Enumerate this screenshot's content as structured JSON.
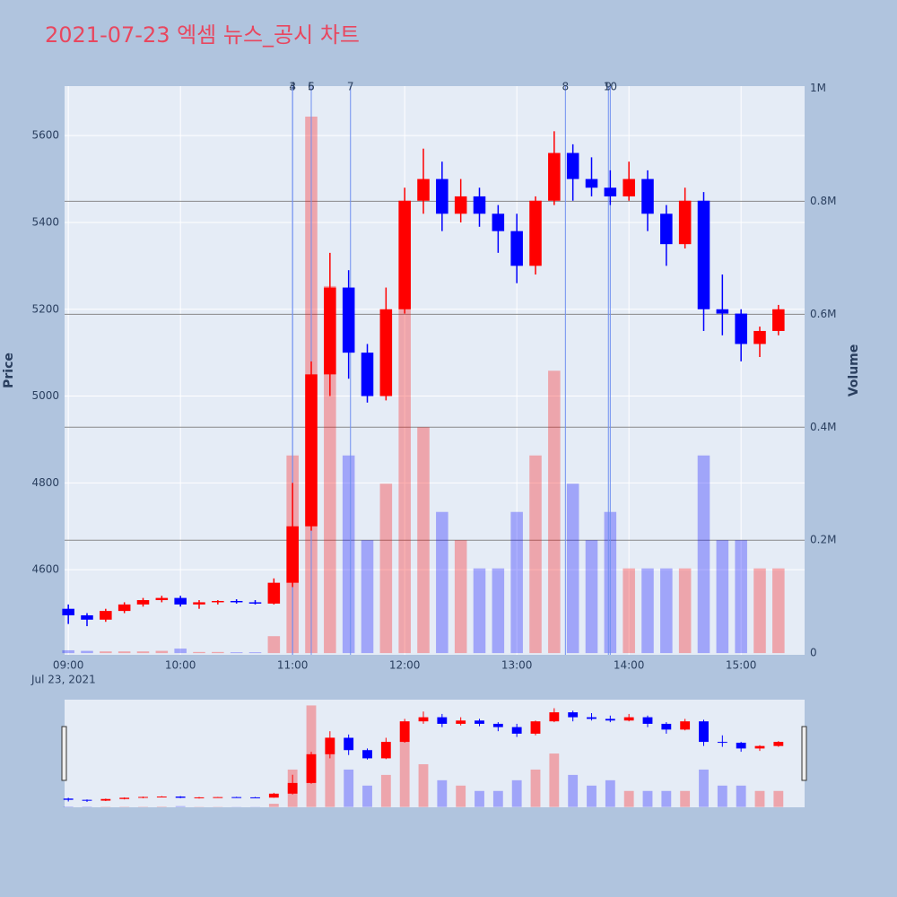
{
  "chart_data": {
    "type": "candlestick",
    "title": "2021-07-23 엑셈 뉴스_공시 차트",
    "y_label": "Price",
    "y2_label": "Volume",
    "x": [
      "2021-07-23 09:00",
      "2021-07-23 09:10",
      "2021-07-23 09:20",
      "2021-07-23 09:30",
      "2021-07-23 09:40",
      "2021-07-23 09:50",
      "2021-07-23 10:00",
      "2021-07-23 10:10",
      "2021-07-23 10:20",
      "2021-07-23 10:30",
      "2021-07-23 10:40",
      "2021-07-23 10:50",
      "2021-07-23 11:00",
      "2021-07-23 11:10",
      "2021-07-23 11:20",
      "2021-07-23 11:30",
      "2021-07-23 11:40",
      "2021-07-23 11:50",
      "2021-07-23 12:00",
      "2021-07-23 12:10",
      "2021-07-23 12:20",
      "2021-07-23 12:30",
      "2021-07-23 12:40",
      "2021-07-23 12:50",
      "2021-07-23 13:00",
      "2021-07-23 13:10",
      "2021-07-23 13:20",
      "2021-07-23 13:30",
      "2021-07-23 13:40",
      "2021-07-23 13:50",
      "2021-07-23 14:00",
      "2021-07-23 14:10",
      "2021-07-23 14:20",
      "2021-07-23 14:30",
      "2021-07-23 14:40",
      "2021-07-23 14:50",
      "2021-07-23 15:00",
      "2021-07-23 15:10",
      "2021-07-23 15:20"
    ],
    "open": [
      4510,
      4495,
      4485,
      4505,
      4520,
      4530,
      4535,
      4520,
      4525,
      4528,
      4525,
      4522,
      4570,
      4700,
      5050,
      5250,
      5100,
      5000,
      5200,
      5450,
      5500,
      5420,
      5460,
      5420,
      5380,
      5300,
      5450,
      5560,
      5500,
      5480,
      5460,
      5500,
      5420,
      5350,
      5450,
      5200,
      5190,
      5120,
      5150
    ],
    "high": [
      4520,
      4500,
      4510,
      4525,
      4535,
      4540,
      4540,
      4530,
      4530,
      4532,
      4530,
      4580,
      4800,
      5080,
      5330,
      5290,
      5120,
      5250,
      5480,
      5570,
      5540,
      5500,
      5480,
      5440,
      5420,
      5460,
      5610,
      5580,
      5550,
      5520,
      5540,
      5520,
      5440,
      5480,
      5470,
      5280,
      5200,
      5160,
      5210
    ],
    "low": [
      4475,
      4470,
      4480,
      4500,
      4515,
      4525,
      4515,
      4510,
      4520,
      4522,
      4520,
      4520,
      4560,
      4690,
      5000,
      5040,
      4985,
      4990,
      5190,
      5420,
      5380,
      5400,
      5390,
      5330,
      5260,
      5280,
      5440,
      5450,
      5460,
      5440,
      5450,
      5380,
      5300,
      5340,
      5150,
      5140,
      5080,
      5090,
      5140
    ],
    "close": [
      4495,
      4485,
      4505,
      4520,
      4530,
      4535,
      4520,
      4525,
      4528,
      4525,
      4522,
      4570,
      4700,
      5050,
      5250,
      5100,
      5000,
      5200,
      5450,
      5500,
      5420,
      5460,
      5420,
      5380,
      5300,
      5450,
      5560,
      5500,
      5480,
      5460,
      5500,
      5420,
      5350,
      5450,
      5200,
      5190,
      5120,
      5150,
      5200
    ],
    "volume": [
      5000,
      4000,
      3000,
      3000,
      3000,
      4000,
      8000,
      2000,
      2000,
      1500,
      1500,
      30000,
      350000,
      950000,
      650000,
      350000,
      200000,
      300000,
      800000,
      400000,
      250000,
      200000,
      150000,
      150000,
      250000,
      350000,
      500000,
      300000,
      200000,
      250000,
      150000,
      150000,
      150000,
      150000,
      350000,
      200000,
      200000,
      150000,
      150000
    ],
    "increasing_color": "#ff0000",
    "decreasing_color": "#0000ff",
    "xlim": [
      "2021-07-23 08:58",
      "2021-07-23 15:34"
    ],
    "xticks": [
      {
        "value": "2021-07-23 09:00",
        "label": "09:00"
      },
      {
        "value": "2021-07-23 10:00",
        "label": "10:00"
      },
      {
        "value": "2021-07-23 11:00",
        "label": "11:00"
      },
      {
        "value": "2021-07-23 12:00",
        "label": "12:00"
      },
      {
        "value": "2021-07-23 13:00",
        "label": "13:00"
      },
      {
        "value": "2021-07-23 14:00",
        "label": "14:00"
      },
      {
        "value": "2021-07-23 15:00",
        "label": "15:00"
      }
    ],
    "x_date_label": "Jul 23, 2021",
    "ylim": [
      4404,
      5714
    ],
    "yticks": [
      4600,
      4800,
      5000,
      5200,
      5400,
      5600
    ],
    "y2lim": [
      -3000,
      1004000
    ],
    "y2ticks": [
      0,
      {
        "value": 200000,
        "label": "0.2M"
      },
      {
        "value": 400000,
        "label": "0.4M"
      },
      {
        "value": 600000,
        "label": "0.6M"
      },
      {
        "value": 800000,
        "label": "0.8M"
      },
      {
        "value": 1000000,
        "label": "1M"
      }
    ],
    "events": [
      {
        "label": "3",
        "x": "2021-07-23 11:00"
      },
      {
        "label": "4",
        "x": "2021-07-23 11:00"
      },
      {
        "label": "5",
        "x": "2021-07-23 11:10"
      },
      {
        "label": "6",
        "x": "2021-07-23 11:10"
      },
      {
        "label": "7",
        "x": "2021-07-23 11:31"
      },
      {
        "label": "8",
        "x": "2021-07-23 13:26"
      },
      {
        "label": "9",
        "x": "2021-07-23 13:49"
      },
      {
        "label": "10",
        "x": "2021-07-23 13:50"
      }
    ],
    "grid": true,
    "range_slider": true
  }
}
